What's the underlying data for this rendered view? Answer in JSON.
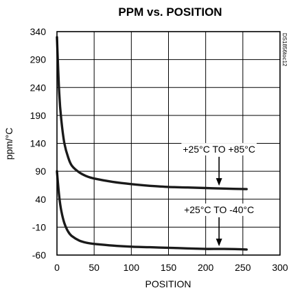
{
  "chart_data": {
    "type": "line",
    "title": "PPM vs. POSITION",
    "xlabel": "POSITION",
    "ylabel": "ppm/°C",
    "xlim": [
      0,
      300
    ],
    "ylim": [
      -60,
      340
    ],
    "x_ticks": [
      "0",
      "50",
      "100",
      "150",
      "200",
      "250",
      "300"
    ],
    "y_ticks": [
      "340",
      "290",
      "240",
      "190",
      "140",
      "90",
      "40",
      "-10",
      "-60"
    ],
    "grid": true,
    "doc_id": "DS1856toc12",
    "series": [
      {
        "name": "+25°C TO +85°C",
        "x": [
          0,
          3,
          6,
          10,
          15,
          20,
          30,
          40,
          50,
          75,
          100,
          125,
          150,
          175,
          200,
          225,
          255
        ],
        "y": [
          330,
          230,
          180,
          140,
          115,
          100,
          88,
          81,
          77,
          71,
          67,
          64,
          62,
          61,
          60,
          59,
          58
        ]
      },
      {
        "name": "+25°C TO -40°C",
        "x": [
          0,
          3,
          6,
          10,
          15,
          20,
          30,
          40,
          50,
          75,
          100,
          125,
          150,
          175,
          200,
          225,
          255
        ],
        "y": [
          90,
          45,
          18,
          -3,
          -18,
          -26,
          -34,
          -38,
          -40,
          -43,
          -45,
          -46,
          -47,
          -48,
          -49,
          -49,
          -50
        ]
      }
    ],
    "annotations": [
      {
        "text": "+25°C TO +85°C",
        "series": 0,
        "arrow_x": 218
      },
      {
        "text": "+25°C TO -40°C",
        "series": 1,
        "arrow_x": 218
      }
    ]
  }
}
